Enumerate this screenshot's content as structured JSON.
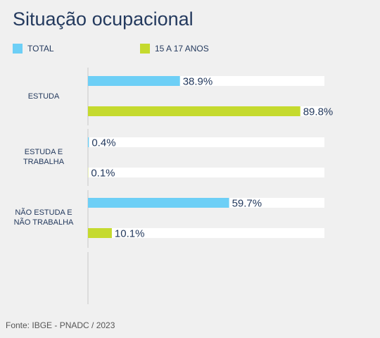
{
  "title": "Situação ocupacional",
  "source": "Fonte: IBGE - PNADC / 2023",
  "colors": {
    "total": "#6dcff6",
    "teen": "#c5da2e",
    "track": "#ffffff",
    "axis": "#c9c9c9"
  },
  "chart_data": {
    "type": "bar",
    "orientation": "horizontal",
    "categories": [
      [
        "ESTUDA"
      ],
      [
        "ESTUDA E",
        "TRABALHA"
      ],
      [
        "NÃO ESTUDA E",
        "NÃO TRABALHA"
      ]
    ],
    "series": [
      {
        "name": "TOTAL",
        "values": [
          38.9,
          0.4,
          59.7
        ],
        "labels": [
          "38.9%",
          "0.4%",
          "59.7%"
        ]
      },
      {
        "name": "15 A 17 ANOS",
        "values": [
          89.8,
          0.1,
          10.1
        ],
        "labels": [
          "89.8%",
          "0.1%",
          "10.1%"
        ]
      }
    ],
    "xlim": [
      0,
      100
    ],
    "legend": "top-left",
    "grid": false
  }
}
